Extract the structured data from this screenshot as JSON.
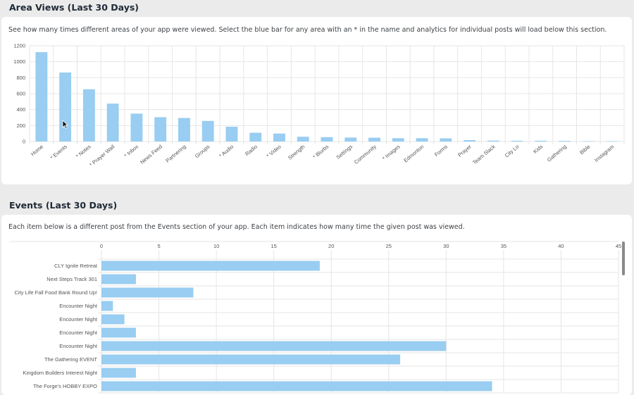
{
  "area_views": {
    "title": "Area Views (Last 30 Days)",
    "description": "See how many times different areas of your app were viewed. Select the blue bar for any area with an * in the name and analytics for individual posts will load below this section."
  },
  "events": {
    "title": "Events (Last 30 Days)",
    "description": "Each item below is a different post from the Events section of your app. Each item indicates how many time the given post was viewed."
  },
  "colors": {
    "bar": "#99cdf1",
    "grid": "#e6e6e6"
  },
  "chart_data": [
    {
      "type": "bar",
      "orientation": "vertical",
      "categories": [
        "Home",
        "* Events",
        "* Notes",
        "* Prayer Wall",
        "* Inbox",
        "News Feed",
        "Partnering",
        "Groups",
        "* Audio",
        "Radio",
        "* Video",
        "Strength",
        "* Blurbs",
        "Settings",
        "Community",
        "* Images",
        "Edmonton",
        "Forms",
        "Prayer",
        "Team Slack",
        "City Lo",
        "Kids",
        "Gathering",
        "Bible",
        "Instagram"
      ],
      "values": [
        1120,
        865,
        655,
        475,
        350,
        305,
        295,
        258,
        185,
        110,
        100,
        60,
        55,
        50,
        48,
        42,
        42,
        40,
        18,
        12,
        10,
        10,
        8,
        5,
        5
      ],
      "yticks": [
        0,
        200,
        400,
        600,
        800,
        1000,
        1200
      ],
      "ylim": [
        0,
        1200
      ],
      "grid": true
    },
    {
      "type": "bar",
      "orientation": "horizontal",
      "categories": [
        "CLY Ignite Retreat",
        "Next Steps Track 301",
        "City Life Fall Food Bank Round Up!",
        "Encounter Night",
        "Encounter Night",
        "Encounter Night",
        "Encounter Night",
        "The Gathering EVENT",
        "Kingdom Builders Interest Night",
        "The Forge's HOBBY EXPO"
      ],
      "values": [
        19,
        3,
        8,
        1,
        2,
        3,
        30,
        26,
        3,
        34
      ],
      "xticks": [
        0,
        5,
        10,
        15,
        20,
        25,
        30,
        35,
        40,
        45
      ],
      "xlim": [
        0,
        45
      ],
      "grid": true
    }
  ]
}
